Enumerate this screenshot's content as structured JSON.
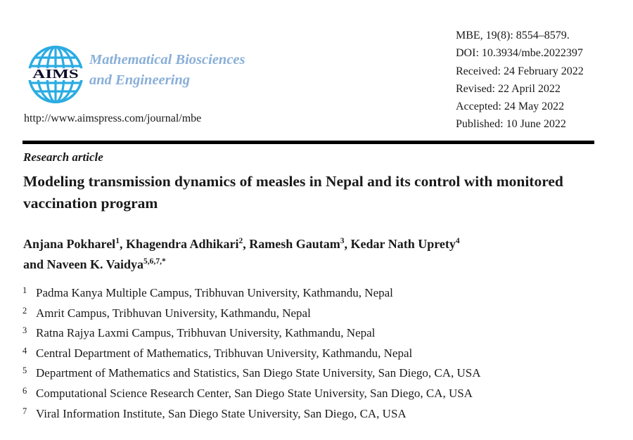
{
  "header": {
    "logo_text": "AIMS",
    "journal_name_line1": "Mathematical Biosciences",
    "journal_name_line2": "and Engineering",
    "url": "http://www.aimspress.com/journal/mbe",
    "meta": [
      "MBE, 19(8): 8554–8579.",
      "DOI: 10.3934/mbe.2022397",
      "Received: 24 February 2022",
      "Revised: 22 April 2022",
      "Accepted: 24 May 2022",
      "Published: 10 June 2022"
    ]
  },
  "article": {
    "type_label": "Research article",
    "title": "Modeling transmission dynamics of measles in Nepal and its control with monitored vaccination program",
    "authors": [
      {
        "name": "Anjana Pokharel",
        "sup": "1",
        "trail": ", "
      },
      {
        "name": "Khagendra Adhikari",
        "sup": "2",
        "trail": ", "
      },
      {
        "name": "Ramesh Gautam",
        "sup": "3",
        "trail": ", "
      },
      {
        "name": "Kedar Nath Uprety",
        "sup": "4",
        "trail": "",
        "break_after": true
      },
      {
        "name": "and Naveen K. Vaidya",
        "sup": "5,6,7,*",
        "trail": ""
      }
    ],
    "affiliations": [
      {
        "num": "1",
        "text": "Padma Kanya Multiple Campus, Tribhuvan University, Kathmandu, Nepal"
      },
      {
        "num": "2",
        "text": "Amrit Campus, Tribhuvan University, Kathmandu, Nepal"
      },
      {
        "num": "3",
        "text": "Ratna Rajya Laxmi Campus, Tribhuvan University, Kathmandu, Nepal"
      },
      {
        "num": "4",
        "text": "Central Department of Mathematics, Tribhuvan University, Kathmandu, Nepal"
      },
      {
        "num": "5",
        "text": "Department of Mathematics and Statistics, San Diego State University, San Diego, CA, USA"
      },
      {
        "num": "6",
        "text": "Computational Science Research Center, San Diego State University, San Diego, CA, USA"
      },
      {
        "num": "7",
        "text": "Viral Information Institute, San Diego State University, San Diego, CA, USA"
      }
    ]
  },
  "colors": {
    "globe_cyan": "#2bace2",
    "journal_name_blue": "#89afd8",
    "text_black": "#1a1a1a"
  }
}
